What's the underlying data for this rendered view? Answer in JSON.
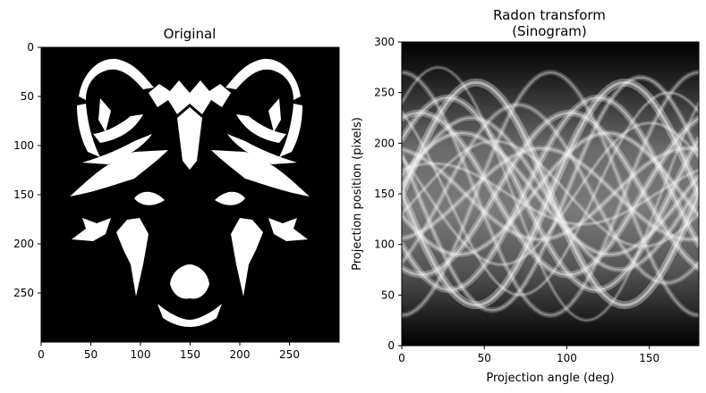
{
  "chart_data": [
    {
      "type": "heatmap",
      "title": "Original",
      "xlabel": "",
      "ylabel": "",
      "xlim": [
        0,
        300
      ],
      "ylim": [
        300,
        0
      ],
      "y_inverted": true,
      "x_ticks": [
        0,
        50,
        100,
        150,
        200,
        250
      ],
      "y_ticks": [
        0,
        50,
        100,
        150,
        200,
        250
      ],
      "colormap": "gray",
      "grid": false,
      "image_content": "white stylized wolf head silhouette on black background"
    },
    {
      "type": "heatmap",
      "title_lines": [
        "Radon transform",
        "(Sinogram)"
      ],
      "xlabel": "Projection angle (deg)",
      "ylabel": "Projection position (pixels)",
      "xlim": [
        0,
        180
      ],
      "ylim": [
        0,
        300
      ],
      "x_ticks": [
        0,
        50,
        100,
        150
      ],
      "y_ticks": [
        0,
        50,
        100,
        150,
        200,
        250,
        300
      ],
      "colormap": "gray",
      "grid": false,
      "image_content": "sinusoidal grayscale bands"
    }
  ]
}
